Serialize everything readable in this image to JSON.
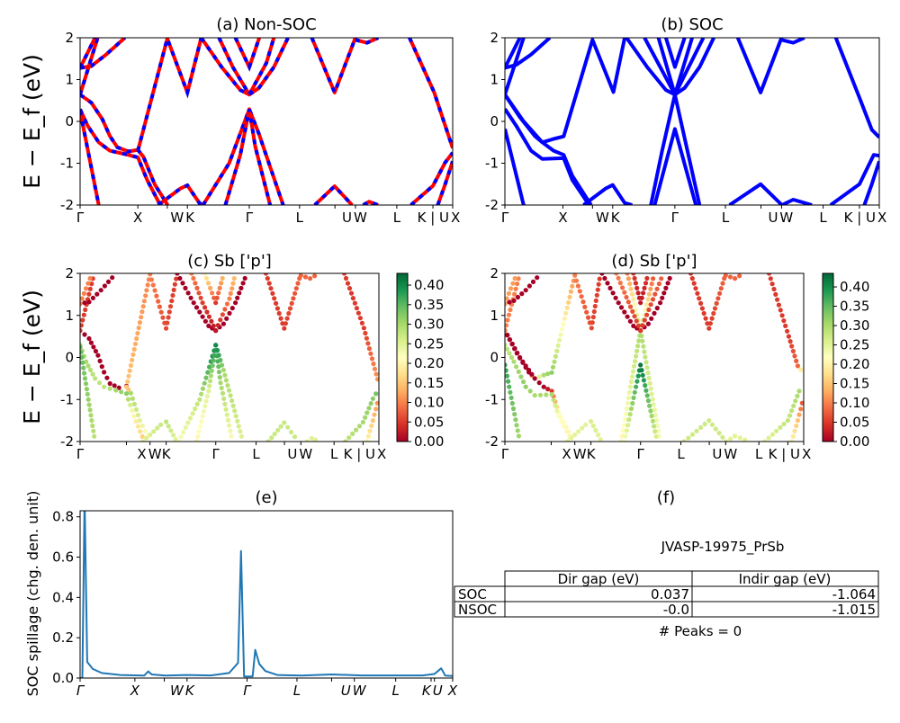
{
  "kpath": {
    "labels": [
      "Γ",
      "X",
      "W",
      "K",
      "Γ",
      "L",
      "U",
      "W",
      "L",
      "K | U",
      "X"
    ],
    "positions": [
      0,
      0.155,
      0.234,
      0.288,
      0.454,
      0.589,
      0.684,
      0.739,
      0.85,
      0.947,
      1.0
    ]
  },
  "ylabel_band": "E − E_f (eV)",
  "chart_data": [
    {
      "id": "a",
      "type": "line",
      "title": "(a) Non-SOC",
      "ylim": [
        -2,
        2
      ],
      "yticks": [
        2,
        1,
        0,
        -1,
        -2
      ],
      "colors": {
        "solid": "#ff0000",
        "dashed": "#0000ff"
      },
      "bands": [
        [
          [
            0,
            0.64
          ],
          [
            0.03,
            0.45
          ],
          [
            0.06,
            0.05
          ],
          [
            0.08,
            -0.35
          ],
          [
            0.1,
            -0.62
          ],
          [
            0.13,
            -0.72
          ],
          [
            0.155,
            -0.68
          ],
          [
            0.17,
            -0.85
          ],
          [
            0.2,
            -1.5
          ],
          [
            0.235,
            -2
          ]
        ],
        [
          [
            0,
            0.29
          ],
          [
            0.02,
            -0.1
          ],
          [
            0.05,
            -0.5
          ],
          [
            0.08,
            -0.7
          ],
          [
            0.12,
            -0.78
          ],
          [
            0.155,
            -0.86
          ],
          [
            0.18,
            -1.4
          ],
          [
            0.215,
            -2
          ]
        ],
        [
          [
            0,
            0.25
          ],
          [
            0.05,
            -2
          ]
        ],
        [
          [
            0,
            0.64
          ],
          [
            0.047,
            2
          ]
        ],
        [
          [
            0,
            1.28
          ],
          [
            0.03,
            1.32
          ],
          [
            0.07,
            1.6
          ],
          [
            0.12,
            2
          ]
        ],
        [
          [
            0,
            1.28
          ],
          [
            0.04,
            2
          ]
        ],
        [
          [
            0.155,
            -0.7
          ],
          [
            0.234,
            1.98
          ],
          [
            0.288,
            0.69
          ],
          [
            0.325,
            2
          ]
        ],
        [
          [
            0.21,
            -2
          ],
          [
            0.27,
            -1.6
          ],
          [
            0.288,
            -1.53
          ],
          [
            0.32,
            -1.95
          ],
          [
            0.33,
            -2
          ]
        ],
        [
          [
            0.33,
            -2
          ],
          [
            0.4,
            -1.0
          ],
          [
            0.454,
            0.29
          ],
          [
            0.48,
            -0.3
          ],
          [
            0.545,
            -2
          ]
        ],
        [
          [
            0.39,
            -2
          ],
          [
            0.43,
            -0.8
          ],
          [
            0.454,
            0.29
          ],
          [
            0.47,
            -0.6
          ],
          [
            0.51,
            -2
          ]
        ],
        [
          [
            0.325,
            2
          ],
          [
            0.38,
            1.3
          ],
          [
            0.43,
            0.75
          ],
          [
            0.454,
            0.64
          ],
          [
            0.48,
            0.8
          ],
          [
            0.52,
            1.3
          ],
          [
            0.558,
            2
          ]
        ],
        [
          [
            0.373,
            2
          ],
          [
            0.41,
            1.3
          ],
          [
            0.454,
            0.64
          ],
          [
            0.5,
            1.4
          ],
          [
            0.52,
            2
          ]
        ],
        [
          [
            0.417,
            2
          ],
          [
            0.454,
            1.3
          ],
          [
            0.481,
            2
          ]
        ],
        [
          [
            0.622,
            2
          ],
          [
            0.683,
            0.69
          ],
          [
            0.739,
            2
          ]
        ],
        [
          [
            0.739,
            1.95
          ],
          [
            0.77,
            1.88
          ],
          [
            0.8,
            2
          ]
        ],
        [
          [
            0.63,
            -2
          ],
          [
            0.683,
            -1.55
          ],
          [
            0.73,
            -2
          ]
        ],
        [
          [
            0.76,
            -2
          ],
          [
            0.775,
            -1.92
          ],
          [
            0.8,
            -2
          ]
        ],
        [
          [
            0.884,
            2
          ],
          [
            0.95,
            0.7
          ],
          [
            1.0,
            -0.64
          ]
        ],
        [
          [
            0.888,
            -2
          ],
          [
            0.947,
            -1.54
          ],
          [
            0.98,
            -0.98
          ],
          [
            1.0,
            -0.75
          ]
        ],
        [
          [
            0.96,
            -2
          ],
          [
            0.98,
            -1.5
          ],
          [
            1.0,
            -0.95
          ]
        ]
      ]
    },
    {
      "id": "b",
      "type": "line",
      "title": "(b) SOC",
      "ylim": [
        -2,
        2
      ],
      "yticks": [
        2,
        1,
        0,
        -1,
        -2
      ],
      "colors": {
        "solid": "#0000ff"
      },
      "bands": [
        [
          [
            0,
            0.64
          ],
          [
            0.04,
            0.1
          ],
          [
            0.08,
            -0.35
          ],
          [
            0.1,
            -0.5
          ],
          [
            0.13,
            -0.42
          ],
          [
            0.157,
            -0.36
          ],
          [
            0.234,
            1.95
          ],
          [
            0.29,
            0.7
          ],
          [
            0.32,
            2
          ]
        ],
        [
          [
            0,
            0.64
          ],
          [
            0.05,
            0.0
          ],
          [
            0.1,
            -0.5
          ],
          [
            0.13,
            -0.7
          ],
          [
            0.157,
            -0.8
          ],
          [
            0.18,
            -1.3
          ],
          [
            0.23,
            -2
          ]
        ],
        [
          [
            0,
            0.3
          ],
          [
            0.03,
            -0.1
          ],
          [
            0.07,
            -0.7
          ],
          [
            0.1,
            -0.9
          ],
          [
            0.157,
            -0.88
          ],
          [
            0.18,
            -1.4
          ],
          [
            0.225,
            -2
          ]
        ],
        [
          [
            0,
            -0.18
          ],
          [
            0.05,
            -2
          ]
        ],
        [
          [
            0,
            0.64
          ],
          [
            0.05,
            2
          ]
        ],
        [
          [
            0,
            1.28
          ],
          [
            0.03,
            1.35
          ],
          [
            0.07,
            1.6
          ],
          [
            0.12,
            2
          ]
        ],
        [
          [
            0,
            1.28
          ],
          [
            0.04,
            2
          ]
        ],
        [
          [
            0.21,
            -2
          ],
          [
            0.27,
            -1.6
          ],
          [
            0.288,
            -1.52
          ],
          [
            0.32,
            -1.95
          ],
          [
            0.34,
            -2
          ]
        ],
        [
          [
            0.39,
            -2
          ],
          [
            0.42,
            -0.7
          ],
          [
            0.454,
            0.64
          ],
          [
            0.5,
            2
          ]
        ],
        [
          [
            0.41,
            2
          ],
          [
            0.454,
            0.64
          ],
          [
            0.52,
            -2
          ]
        ],
        [
          [
            0.4,
            -2
          ],
          [
            0.454,
            -0.18
          ],
          [
            0.51,
            -2
          ]
        ],
        [
          [
            0.325,
            2
          ],
          [
            0.38,
            1.3
          ],
          [
            0.43,
            0.75
          ],
          [
            0.454,
            0.64
          ],
          [
            0.48,
            0.8
          ],
          [
            0.52,
            1.3
          ],
          [
            0.558,
            2
          ]
        ],
        [
          [
            0.373,
            2
          ],
          [
            0.454,
            0.64
          ],
          [
            0.53,
            2
          ]
        ],
        [
          [
            0.43,
            2
          ],
          [
            0.454,
            1.3
          ],
          [
            0.48,
            2
          ]
        ],
        [
          [
            0.622,
            2
          ],
          [
            0.683,
            0.69
          ],
          [
            0.739,
            2
          ]
        ],
        [
          [
            0.739,
            1.95
          ],
          [
            0.77,
            1.88
          ],
          [
            0.8,
            2
          ]
        ],
        [
          [
            0.6,
            -2
          ],
          [
            0.683,
            -1.5
          ],
          [
            0.74,
            -2
          ]
        ],
        [
          [
            0.74,
            -2
          ],
          [
            0.77,
            -1.87
          ],
          [
            0.82,
            -2
          ]
        ],
        [
          [
            0.884,
            2
          ],
          [
            0.95,
            0.5
          ],
          [
            0.98,
            -0.2
          ],
          [
            1.0,
            -0.38
          ]
        ],
        [
          [
            0.87,
            -2
          ],
          [
            0.947,
            -1.5
          ],
          [
            0.985,
            -0.8
          ],
          [
            1.0,
            -0.82
          ]
        ],
        [
          [
            0.96,
            -2
          ],
          [
            0.98,
            -1.5
          ],
          [
            1.0,
            -0.95
          ]
        ]
      ]
    },
    {
      "id": "c",
      "type": "scatter",
      "title": "(c)  Sb ['p']",
      "ylim": [
        -2,
        2
      ],
      "yticks": [
        2,
        1,
        0,
        -1,
        -2
      ],
      "colormap": "RdYlGn",
      "clim": [
        0,
        0.43
      ],
      "colorbar_ticks": [
        "0.00",
        "0.05",
        "0.10",
        "0.15",
        "0.20",
        "0.25",
        "0.30",
        "0.35",
        "0.40"
      ],
      "band_source": "a",
      "weights": [
        [
          0,
          0,
          0,
          0,
          0,
          0,
          0,
          0.3,
          0.25,
          0.2
        ],
        [
          0.3,
          0.3,
          0.28,
          0.28,
          0.3,
          0.32,
          0.2,
          0.15
        ],
        [
          0.35,
          0.28
        ],
        [
          0.05,
          0.05
        ],
        [
          0,
          0,
          0,
          0
        ],
        [
          0.1,
          0.1
        ],
        [
          0.15,
          0.1,
          0.06,
          0.05
        ],
        [
          0.25,
          0.27,
          0.28,
          0.25,
          0.25
        ],
        [
          0.22,
          0.28,
          0.42,
          0.3,
          0.25
        ],
        [
          0.2,
          0.25,
          0.4,
          0.3,
          0.22
        ],
        [
          0,
          0,
          0,
          0,
          0,
          0,
          0
        ],
        [
          0.1,
          0.05,
          0.02,
          0.1,
          0.15
        ],
        [
          0.2,
          0.05,
          0.15
        ],
        [
          0.05,
          0.05,
          0.08
        ],
        [
          0.08,
          0.08,
          0.08
        ],
        [
          0.27,
          0.27,
          0.27
        ],
        [
          0.25,
          0.25,
          0.25
        ],
        [
          0.05,
          0.05,
          0.12
        ],
        [
          0.28,
          0.3,
          0.32,
          0.35
        ],
        [
          0.2,
          0.15,
          0.1
        ]
      ]
    },
    {
      "id": "d",
      "type": "scatter",
      "title": "(d) Sb ['p']",
      "ylim": [
        -2,
        2
      ],
      "yticks": [
        2,
        1,
        0,
        -1,
        -2
      ],
      "colormap": "RdYlGn",
      "clim": [
        0,
        0.435
      ],
      "colorbar_ticks": [
        "0.00",
        "0.05",
        "0.10",
        "0.15",
        "0.20",
        "0.25",
        "0.30",
        "0.35",
        "0.40"
      ],
      "band_source": "b",
      "weights": [
        [
          0,
          0,
          0,
          0.2,
          0.3,
          0.32,
          0.1,
          0.06,
          0.05
        ],
        [
          0,
          0,
          0,
          0,
          0.05,
          0.22,
          0.2
        ],
        [
          0.28,
          0.3,
          0.32,
          0.3,
          0.3,
          0.22,
          0.2
        ],
        [
          0.38,
          0.3
        ],
        [
          0.1,
          0.1
        ],
        [
          0,
          0,
          0,
          0
        ],
        [
          0.12,
          0.12
        ],
        [
          0.25,
          0.25,
          0.26,
          0.25,
          0.25
        ],
        [
          0.2,
          0.25,
          0.3,
          0.05
        ],
        [
          0.1,
          0.3,
          0.22
        ],
        [
          0.22,
          0.42,
          0.25
        ],
        [
          0,
          0,
          0,
          0,
          0,
          0,
          0
        ],
        [
          0.1,
          0.05,
          0.08
        ],
        [
          0.05,
          0.02,
          0.05
        ],
        [
          0.05,
          0.05,
          0.08
        ],
        [
          0.08,
          0.08,
          0.08
        ],
        [
          0.27,
          0.27,
          0.27
        ],
        [
          0.25,
          0.25,
          0.25
        ],
        [
          0.05,
          0.05,
          0.08,
          0.3
        ],
        [
          0.25,
          0.28,
          0.3,
          0.15
        ],
        [
          0.2,
          0.15,
          0.05
        ]
      ]
    },
    {
      "id": "e",
      "type": "line",
      "title": "(e)",
      "ylabel": "SOC spillage (chg. den. unit)",
      "ylim": [
        0,
        0.83
      ],
      "yticks": [
        "0.0",
        "0.2",
        "0.4",
        "0.6",
        "0.8"
      ],
      "color": "#1f77b4",
      "xtick_labels": [
        "Γ",
        "X",
        "W",
        "K",
        "Γ",
        "L",
        "U",
        "W",
        "L",
        "K",
        "U",
        "X"
      ],
      "xtick_positions": [
        0,
        0.147,
        0.226,
        0.287,
        0.448,
        0.582,
        0.675,
        0.736,
        0.847,
        0.942,
        0.951,
        1.0
      ],
      "x": [
        0,
        0.006,
        0.012,
        0.019,
        0.034,
        0.058,
        0.107,
        0.172,
        0.183,
        0.192,
        0.229,
        0.286,
        0.351,
        0.4,
        0.424,
        0.432,
        0.44,
        0.463,
        0.47,
        0.481,
        0.497,
        0.529,
        0.594,
        0.675,
        0.756,
        0.919,
        0.951,
        0.969,
        0.98,
        1.0
      ],
      "y": [
        0,
        0,
        0.9,
        0.08,
        0.045,
        0.025,
        0.015,
        0.012,
        0.033,
        0.018,
        0.012,
        0.015,
        0.013,
        0.025,
        0.075,
        0.63,
        0.008,
        0.008,
        0.14,
        0.07,
        0.035,
        0.015,
        0.012,
        0.018,
        0.013,
        0.013,
        0.02,
        0.048,
        0.012,
        0.01
      ]
    }
  ],
  "panel_f": {
    "title": "(f)",
    "material": "JVASP-19975_PrSb",
    "table": {
      "columns": [
        "Dir gap (eV)",
        "Indir gap (eV)"
      ],
      "rows": [
        {
          "label": "SOC",
          "values": [
            "0.037",
            "-1.064"
          ]
        },
        {
          "label": "NSOC",
          "values": [
            "-0.0",
            "-1.015"
          ]
        }
      ]
    },
    "peaks": "# Peaks = 0"
  }
}
